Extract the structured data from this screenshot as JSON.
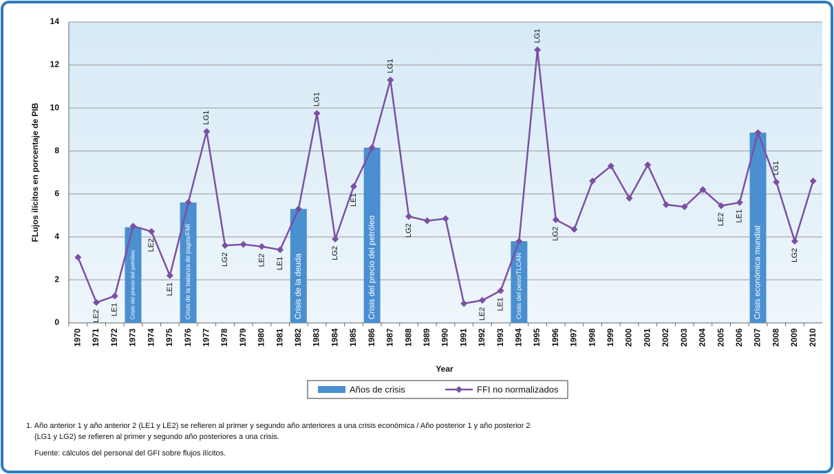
{
  "chart_data": {
    "type": "bar",
    "y_label": "FLujos ilícitos en porcentaje de PIB",
    "x_label": "Year",
    "categories": [
      "1970",
      "1971",
      "1972",
      "1973",
      "1974",
      "1975",
      "1976",
      "1977",
      "1978",
      "1979",
      "1980",
      "1981",
      "1982",
      "1983",
      "1984",
      "1985",
      "1986",
      "1987",
      "1988",
      "1989",
      "1990",
      "1991",
      "1992",
      "1993",
      "1994",
      "1995",
      "1996",
      "1997",
      "1998",
      "1999",
      "2000",
      "2001",
      "2002",
      "2003",
      "2004",
      "2005",
      "2006",
      "2007",
      "2008",
      "2009",
      "2010"
    ],
    "series": [
      {
        "name": "Años de crisis",
        "type": "bar",
        "color": "#4a8fd0",
        "values": [
          null,
          null,
          null,
          4.45,
          null,
          null,
          5.6,
          null,
          null,
          null,
          null,
          null,
          5.3,
          null,
          null,
          null,
          8.15,
          null,
          null,
          null,
          null,
          null,
          null,
          null,
          3.8,
          null,
          null,
          null,
          null,
          null,
          null,
          null,
          null,
          null,
          null,
          null,
          null,
          8.85,
          null,
          null,
          null
        ],
        "bar_labels": [
          null,
          null,
          null,
          "Crisis del precio del petróleo",
          null,
          null,
          "Crisis de la balanza de pagos/FMI",
          null,
          null,
          null,
          null,
          null,
          "Crisis de la deuda",
          null,
          null,
          null,
          "Crisis del precio del petróleo",
          null,
          null,
          null,
          null,
          null,
          null,
          null,
          "Crisis del peso/TLCAN",
          null,
          null,
          null,
          null,
          null,
          null,
          null,
          null,
          null,
          null,
          null,
          null,
          "Crisis económica mundial",
          null,
          null,
          null
        ]
      },
      {
        "name": "FFI no normalizados",
        "type": "line",
        "color": "#7b4fa3",
        "values": [
          3.05,
          0.95,
          1.25,
          4.5,
          4.25,
          2.2,
          5.6,
          8.9,
          3.6,
          3.65,
          3.55,
          3.4,
          5.3,
          9.75,
          3.9,
          6.35,
          8.15,
          11.3,
          4.95,
          4.75,
          4.85,
          0.9,
          1.05,
          1.5,
          3.8,
          12.7,
          4.8,
          4.35,
          6.6,
          7.3,
          5.8,
          7.35,
          5.5,
          5.4,
          6.2,
          5.45,
          5.6,
          8.85,
          6.55,
          3.8,
          6.6
        ],
        "point_labels": [
          null,
          "LE2",
          "LE1",
          null,
          "LE2",
          "LE1",
          null,
          "LG1",
          "LG2",
          null,
          "LE2",
          "LE1",
          null,
          "LG1",
          "LG2",
          "LE1",
          null,
          "LG1",
          "LG2",
          null,
          null,
          null,
          "LE2",
          "LE1",
          null,
          "LG1",
          "LG2",
          null,
          null,
          null,
          null,
          null,
          null,
          null,
          null,
          "LE2",
          "LE1",
          null,
          "LG1",
          "LG2",
          null
        ]
      }
    ],
    "ylim": [
      0,
      14
    ],
    "yticks": [
      0,
      2,
      4,
      6,
      8,
      10,
      12,
      14
    ],
    "grid": true,
    "legend": "bottom",
    "notes": [
      "1. Año anterior 1 y año anterior 2 (LE1 y LE2) se refieren al primer y segundo año anteriores a una crisis económica / Año posterior 1 y año posterior 2",
      "(LG1 y LG2) se refieren al primer y segundo año posteriores a una crisis.",
      "Fuente: cálculos del personal del GFI sobre flujos ilícitos."
    ]
  }
}
